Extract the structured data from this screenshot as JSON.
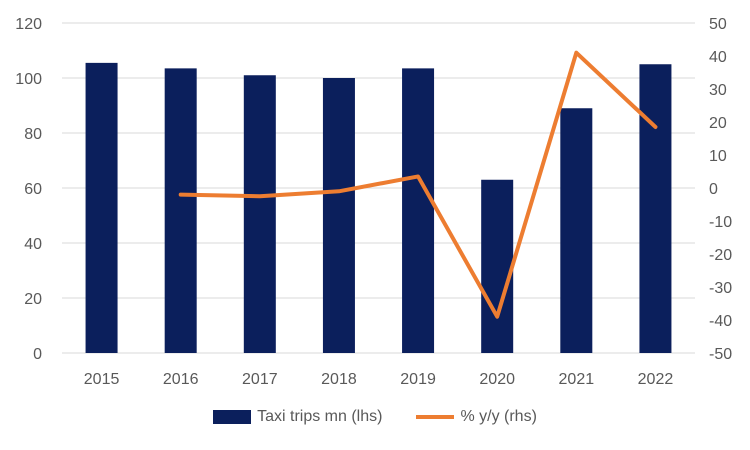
{
  "chart_data": {
    "type": "bar",
    "categories": [
      "2015",
      "2016",
      "2017",
      "2018",
      "2019",
      "2020",
      "2021",
      "2022"
    ],
    "series": [
      {
        "name": "Taxi trips mn (lhs)",
        "type": "bar",
        "axis": "left",
        "values": [
          105.5,
          103.5,
          101,
          100,
          103.5,
          63,
          89,
          105
        ]
      },
      {
        "name": "% y/y (rhs)",
        "type": "line",
        "axis": "right",
        "values": [
          null,
          -2,
          -2.5,
          -1,
          3.5,
          -39,
          41,
          18.5
        ]
      }
    ],
    "y_left": {
      "min": 0,
      "max": 120,
      "ticks": [
        "0",
        "20",
        "40",
        "60",
        "80",
        "100",
        "120"
      ]
    },
    "y_right": {
      "min": -50,
      "max": 50,
      "ticks": [
        "-50",
        "-40",
        "-30",
        "-20",
        "-10",
        "0",
        "10",
        "20",
        "30",
        "40",
        "50"
      ]
    },
    "grid": true,
    "legend_position": "bottom",
    "colors": {
      "bar": "#0b1f5c",
      "line": "#ed7d31",
      "grid": "#d9d9d9",
      "text": "#595959"
    }
  }
}
